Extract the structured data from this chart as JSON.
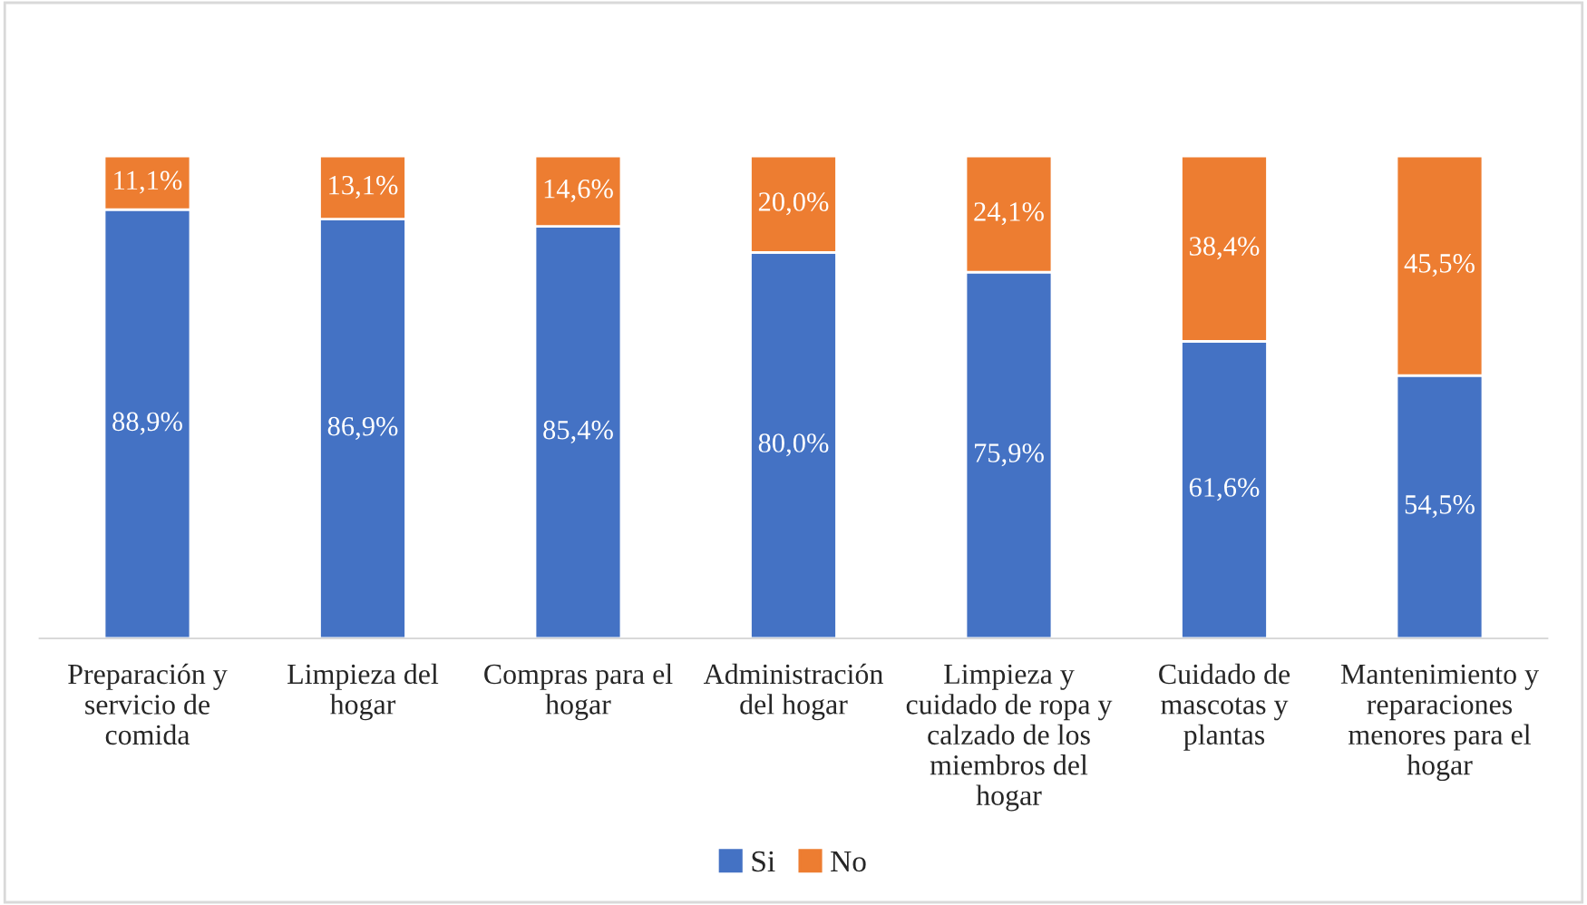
{
  "chart_data": {
    "type": "bar",
    "stacked": true,
    "categories": [
      "Preparación y\nservicio de\ncomida",
      "Limpieza del\nhogar",
      "Compras para el\nhogar",
      "Administración\ndel hogar",
      "Limpieza y\ncuidado de ropa y\ncalzado de los\nmiembros del\nhogar",
      "Cuidado de\nmascotas y\nplantas",
      "Mantenimiento y\nreparaciones\nmenores para el\nhogar"
    ],
    "series": [
      {
        "name": "Si",
        "color": "#4472c4",
        "values": [
          88.9,
          86.9,
          85.4,
          80.0,
          75.9,
          61.6,
          54.5
        ],
        "value_labels": [
          "88,9%",
          "86,9%",
          "85,4%",
          "80,0%",
          "75,9%",
          "61,6%",
          "54,5%"
        ]
      },
      {
        "name": "No",
        "color": "#ed7d31",
        "values": [
          11.1,
          13.1,
          14.6,
          20.0,
          24.1,
          38.4,
          45.5
        ],
        "value_labels": [
          "11,1%",
          "13,1%",
          "14,6%",
          "20,0%",
          "24,1%",
          "38,4%",
          "45,5%"
        ]
      }
    ],
    "legend": "bottom",
    "tick_labels": "x"
  }
}
